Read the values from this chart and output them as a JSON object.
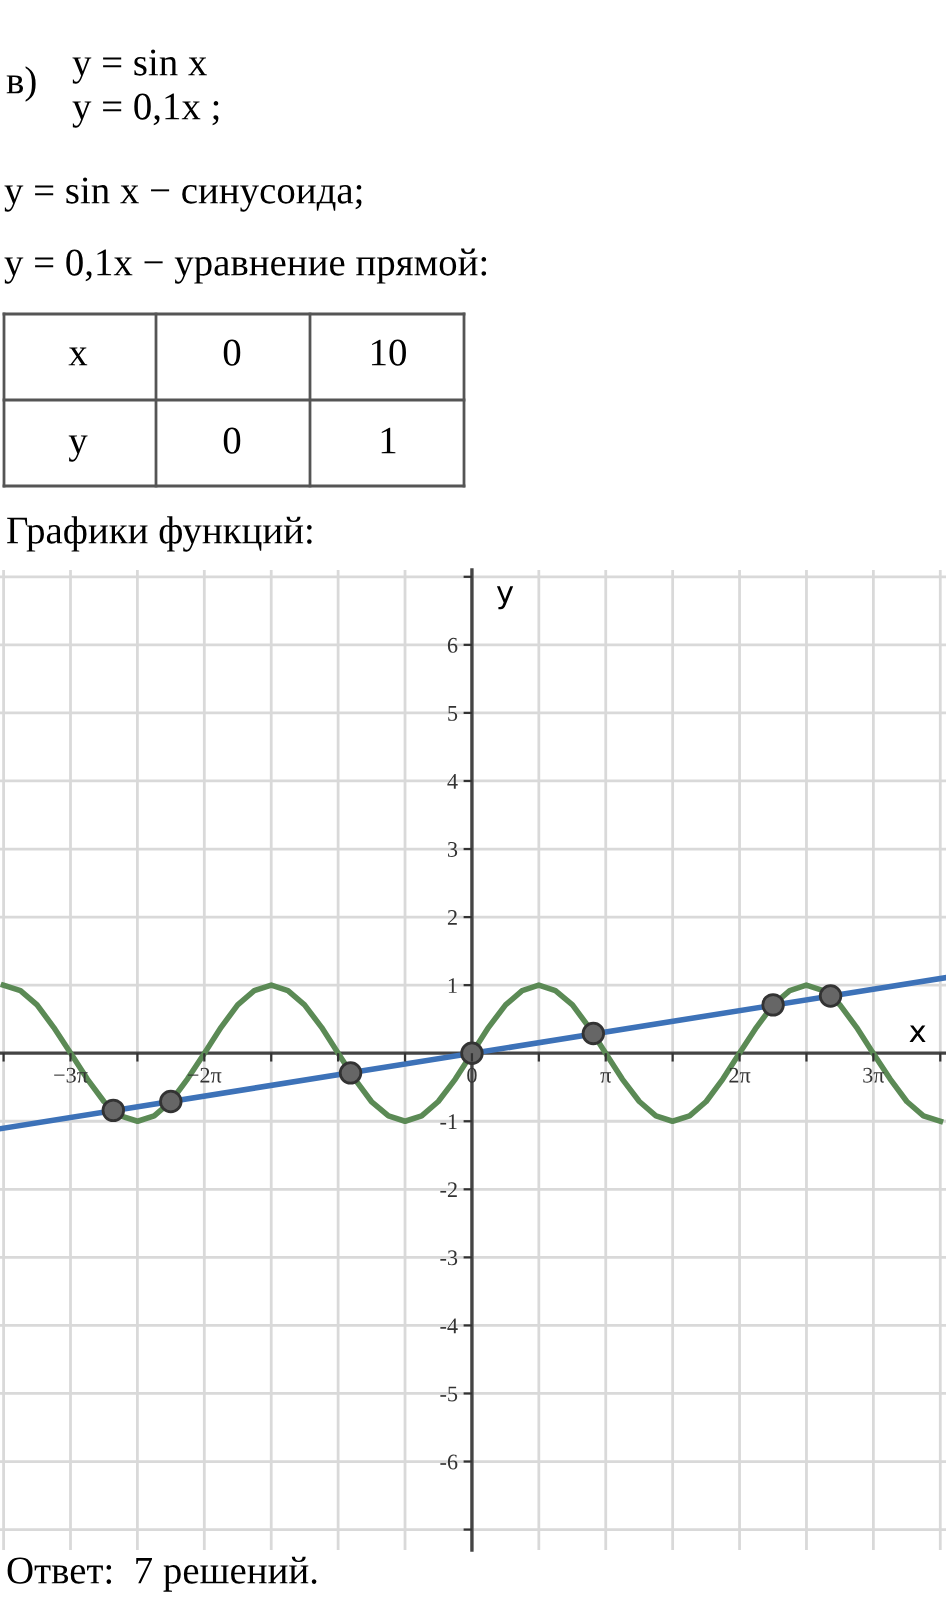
{
  "chart_data": {
    "type": "line",
    "title": "Графики функций:",
    "xlabel": "x",
    "ylabel": "y",
    "annotations": [
      "в)",
      "y = sin x",
      "y = 0,1x ;",
      "y = sin x − синусоида;",
      "y = 0,1x − уравнение прямой:",
      "x",
      "0",
      "10",
      "y",
      "0",
      "1",
      "Ответ:  7 решений."
    ],
    "series": [
      {
        "color": "#5b8a55",
        "x": [
          -11.0,
          -10.6,
          -10.21,
          -9.82,
          -9.42,
          -9.03,
          -8.64,
          -8.25,
          -7.85,
          -7.46,
          -7.07,
          -6.68,
          -6.28,
          -5.89,
          -5.5,
          -5.11,
          -4.71,
          -4.32,
          -3.93,
          -3.53,
          -3.14,
          -2.75,
          -2.36,
          -1.96,
          -1.57,
          -1.18,
          -0.79,
          -0.39,
          0,
          0.39,
          0.79,
          1.18,
          1.57,
          1.96,
          2.36,
          2.75,
          3.14,
          3.53,
          3.93,
          4.32,
          4.71,
          5.11,
          5.5,
          5.89,
          6.28,
          6.68,
          7.07,
          7.46,
          7.85,
          8.25,
          8.64,
          9.03,
          9.42,
          9.82,
          10.21,
          10.6,
          11.0
        ],
        "values": [
          1,
          0.92,
          0.71,
          0.38,
          0,
          -0.38,
          -0.71,
          -0.92,
          -1,
          -0.92,
          -0.71,
          -0.38,
          0,
          0.38,
          0.71,
          0.92,
          1,
          0.92,
          0.71,
          0.38,
          0,
          -0.38,
          -0.71,
          -0.92,
          -1,
          -0.92,
          -0.71,
          -0.38,
          0,
          0.38,
          0.71,
          0.92,
          1,
          0.92,
          0.71,
          0.38,
          0,
          -0.38,
          -0.71,
          -0.92,
          -1,
          -0.92,
          -0.71,
          -0.38,
          0,
          0.38,
          0.71,
          0.92,
          1,
          0.92,
          0.71,
          0.38,
          0,
          -0.38,
          -0.71,
          -0.92,
          -1
        ]
      },
      {
        "color": "#3d72b8",
        "x": [
          -11.08,
          11.13
        ],
        "values": [
          -1.11,
          1.11
        ]
      },
      {
        "color": "#666666",
        "type": "scatter",
        "marker": "circle",
        "x": [
          -8.42,
          -7.07,
          -2.85,
          0,
          2.85,
          7.07,
          8.42
        ],
        "values": [
          -0.84,
          -0.71,
          -0.29,
          0,
          0.29,
          0.71,
          0.84
        ]
      }
    ],
    "xlim": [
      -11.08,
      11.13
    ],
    "ylim": [
      -7.3,
      7.1
    ],
    "xticks": [
      {
        "value": -10.9956,
        "label": null
      },
      {
        "value": -9.4248,
        "label": "−3π"
      },
      {
        "value": -7.854,
        "label": null
      },
      {
        "value": -6.2832,
        "label": "−2π"
      },
      {
        "value": -4.7124,
        "label": null
      },
      {
        "value": -3.1416,
        "label": null
      },
      {
        "value": -1.5708,
        "label": null
      },
      0,
      {
        "value": 1.5708,
        "label": null
      },
      {
        "value": 3.1416,
        "label": "π"
      },
      {
        "value": 4.7124,
        "label": null
      },
      {
        "value": 6.2832,
        "label": "2π"
      },
      {
        "value": 7.854,
        "label": null
      },
      {
        "value": 9.4248,
        "label": "3π"
      },
      {
        "value": 10.9956,
        "label": null
      }
    ],
    "yticks": [
      {
        "value": -7,
        "label": null
      },
      -6,
      -5,
      -4,
      -3,
      -2,
      -1,
      1,
      2,
      3,
      4,
      5,
      6,
      {
        "value": 7,
        "label": null
      }
    ],
    "grid": true
  }
}
